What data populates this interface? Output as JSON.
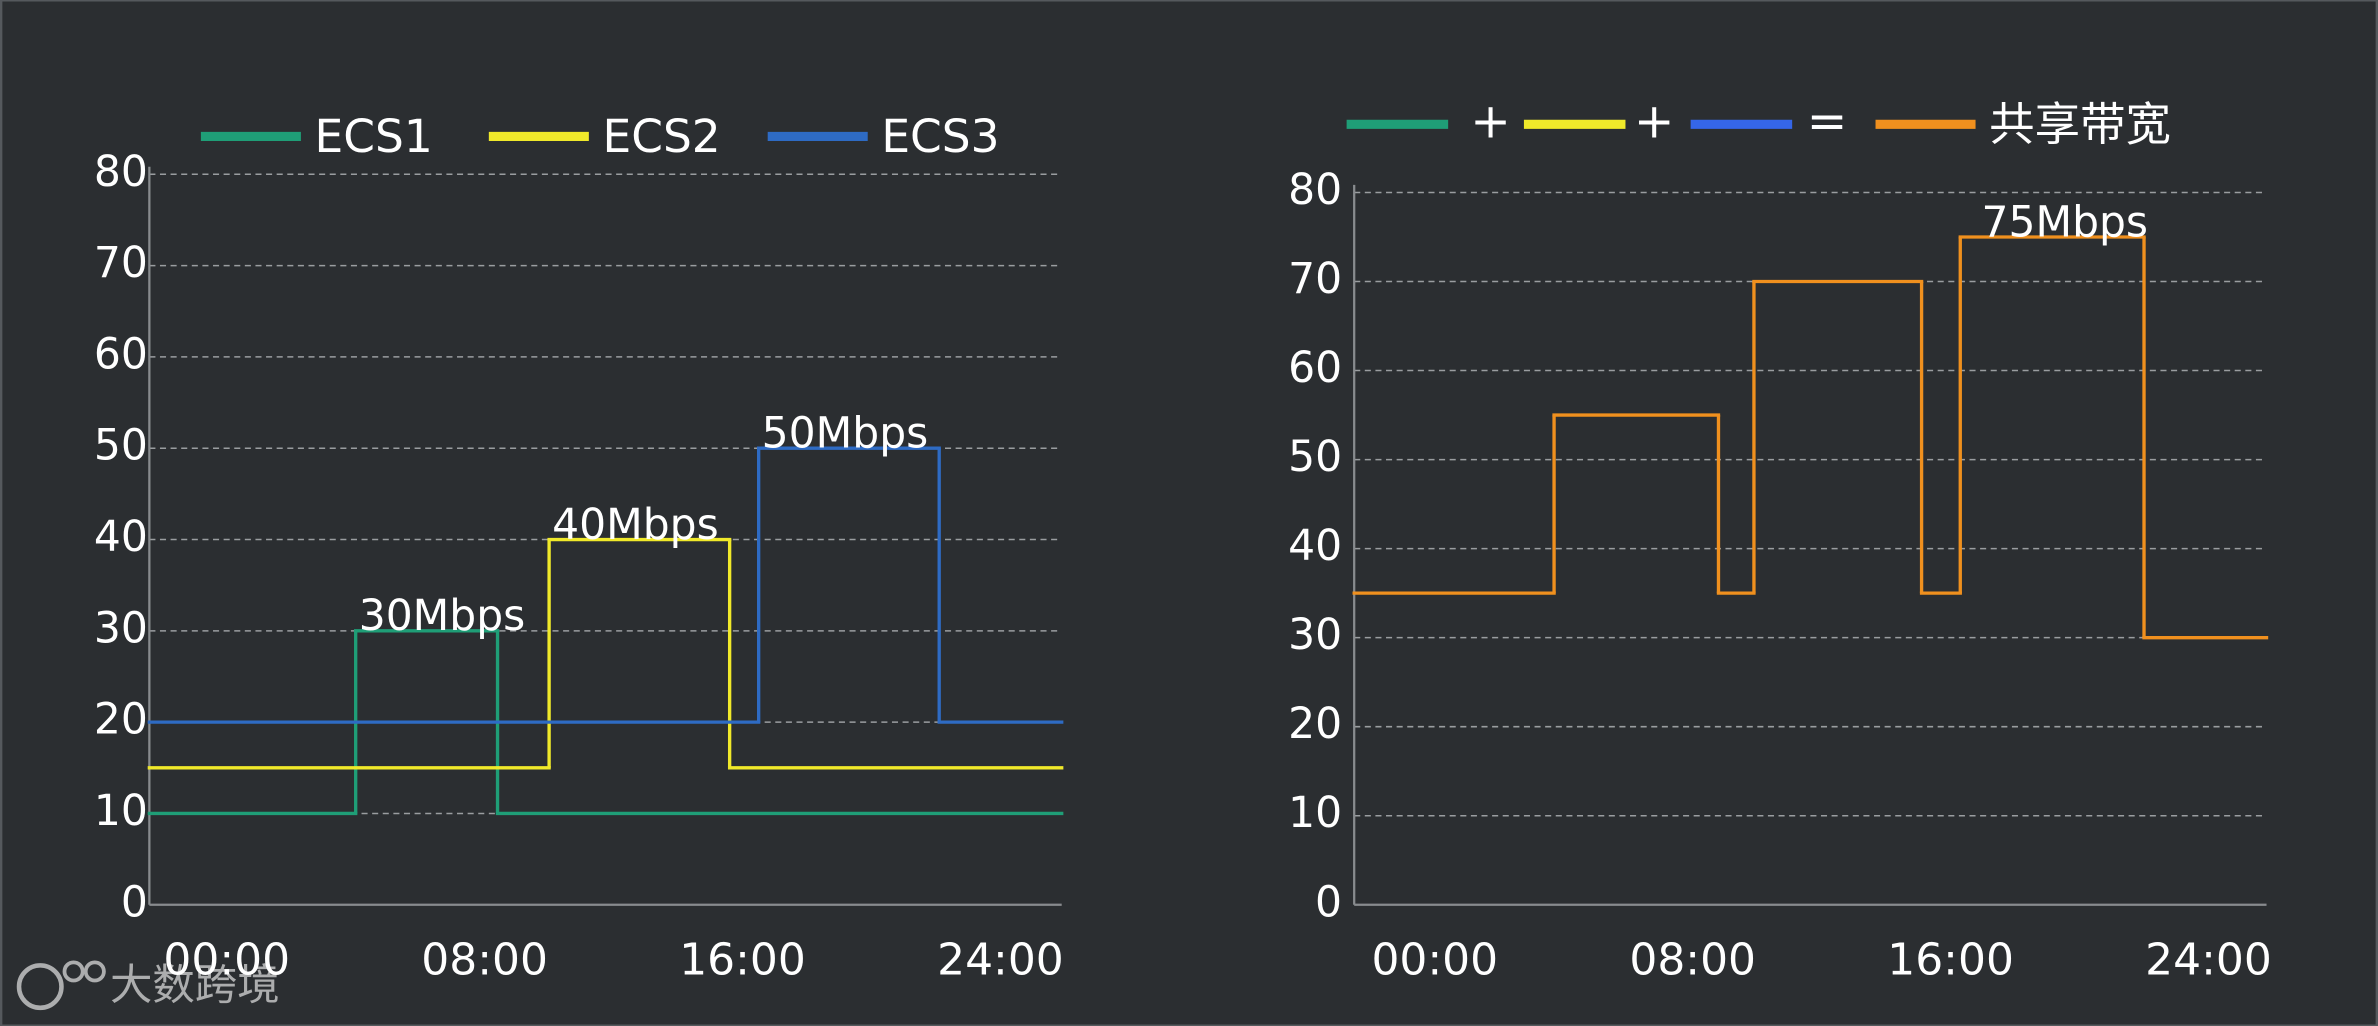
{
  "chart_data": [
    {
      "type": "step",
      "series": [
        {
          "name": "ECS1",
          "color": "#1f9e77",
          "x": [
            -2.4,
            4,
            8.4
          ],
          "values": [
            10,
            30,
            10
          ]
        },
        {
          "name": "ECS2",
          "color": "#f0e92a",
          "x": [
            -2.4,
            10,
            15.6
          ],
          "values": [
            15,
            40,
            15
          ]
        },
        {
          "name": "ECS3",
          "color": "#2e6bc4",
          "x": [
            -2.4,
            16.5,
            22.1
          ],
          "values": [
            20,
            50,
            20
          ]
        }
      ],
      "annotations": [
        {
          "text": "30Mbps",
          "x": 4,
          "y": 30
        },
        {
          "text": "40Mbps",
          "x": 10,
          "y": 40
        },
        {
          "text": "50Mbps",
          "x": 16.5,
          "y": 50
        }
      ],
      "xlim": [
        -2.4,
        25.9
      ],
      "xticks": [
        {
          "value": 0,
          "label": "00:00"
        },
        {
          "value": 8,
          "label": "08:00"
        },
        {
          "value": 16,
          "label": "16:00"
        },
        {
          "value": 24,
          "label": "24:00"
        }
      ],
      "ylim": [
        0,
        80
      ],
      "yticks": [
        0,
        10,
        20,
        30,
        40,
        50,
        60,
        70,
        80
      ],
      "grid": true
    },
    {
      "type": "step",
      "legend_formula": [
        {
          "color": "#1f9e77",
          "operator": "+"
        },
        {
          "color": "#f0e92a",
          "operator": "+"
        },
        {
          "color": "#3566e8",
          "operator": "="
        }
      ],
      "series": [
        {
          "name": "共享带宽",
          "color": "#f0901e",
          "x": [
            -2.5,
            3.7,
            8.8,
            9.9,
            15.1,
            16.3,
            22
          ],
          "values": [
            35,
            55,
            35,
            70,
            35,
            75,
            30
          ]
        }
      ],
      "annotations": [
        {
          "text": "75Mbps",
          "x": 16.3,
          "y": 75
        }
      ],
      "xlim": [
        -2.5,
        25.8
      ],
      "xticks": [
        {
          "value": 0,
          "label": "00:00"
        },
        {
          "value": 8,
          "label": "08:00"
        },
        {
          "value": 16,
          "label": "16:00"
        },
        {
          "value": 24,
          "label": "24:00"
        }
      ],
      "ylim": [
        0,
        80
      ],
      "yticks": [
        0,
        10,
        20,
        30,
        40,
        50,
        60,
        70,
        80
      ],
      "grid": true
    }
  ],
  "watermark": "大数跨境"
}
